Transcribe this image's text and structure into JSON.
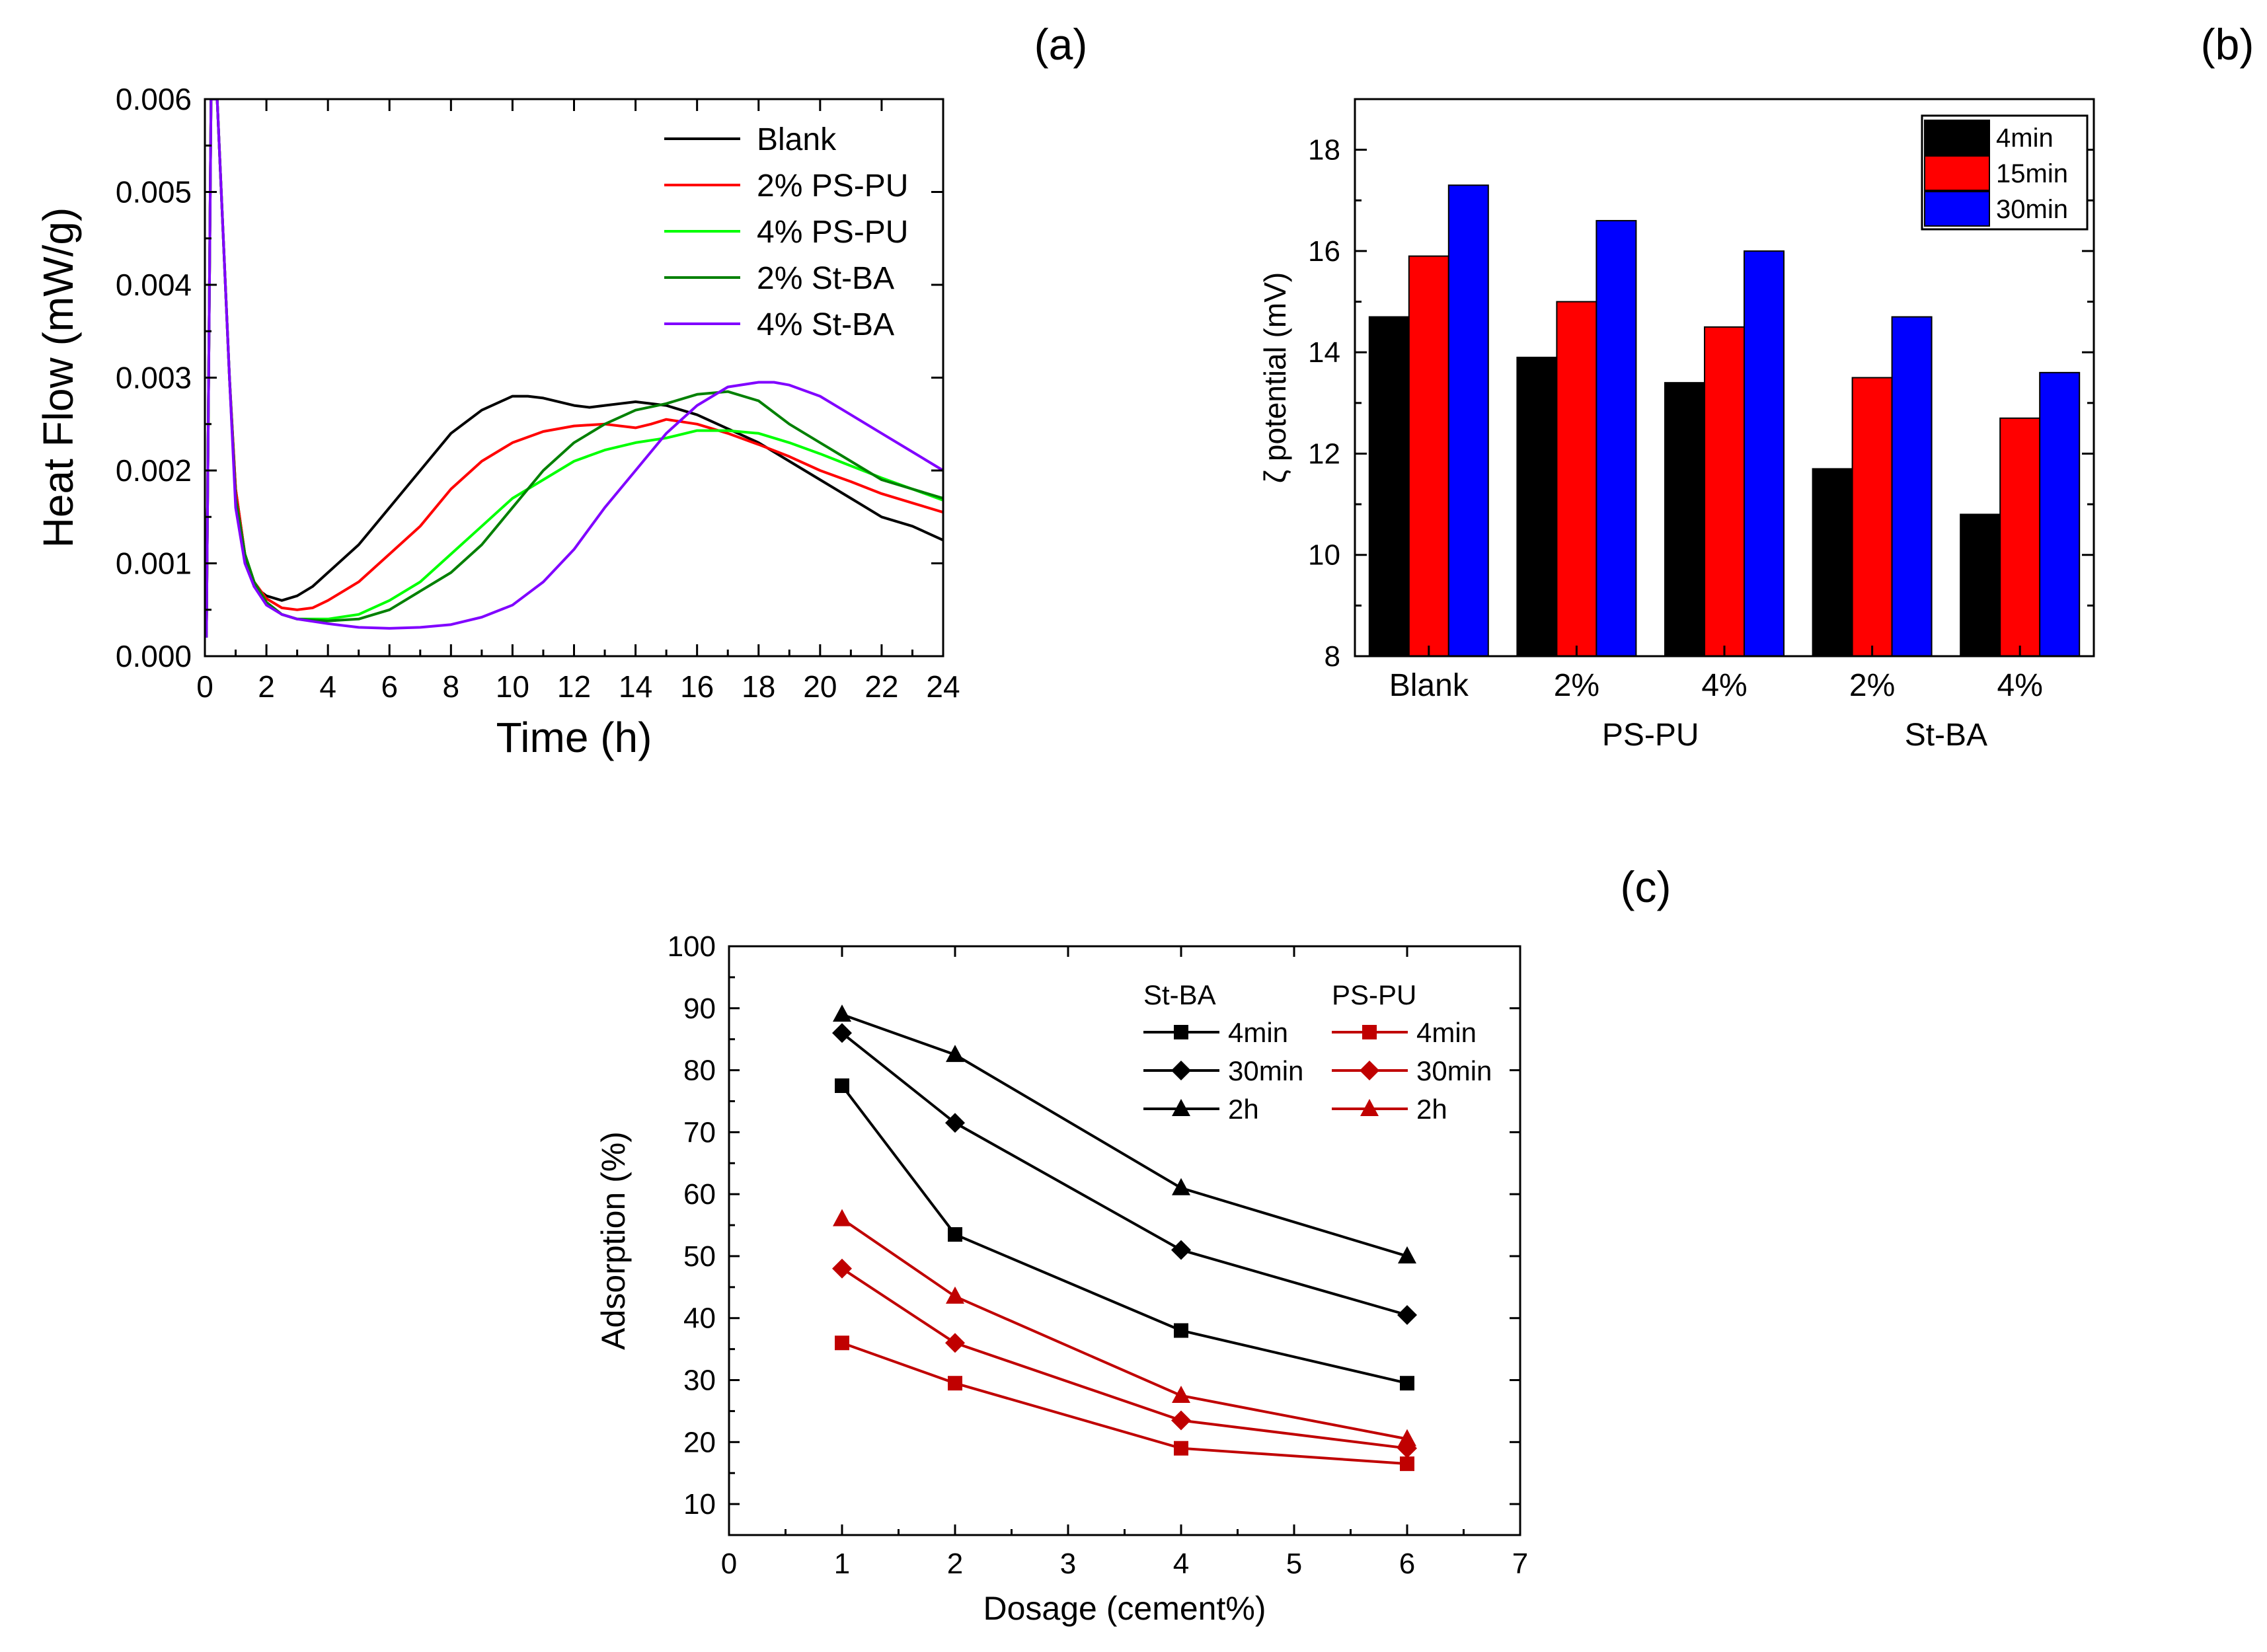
{
  "panel_labels": [
    "(a)",
    "(b)",
    "(c)"
  ],
  "colors": {
    "blank": "#000000",
    "ps_pu_2": "#ff0000",
    "ps_pu_4": "#00ff00",
    "st_ba_2": "#008000",
    "st_ba_4": "#8000ff",
    "bar_4min": "#000000",
    "bar_15min": "#ff0000",
    "bar_30min": "#0000ff",
    "st_ba_line": "#000000",
    "ps_pu_line": "#c00000"
  },
  "chart_data": [
    {
      "id": "a",
      "type": "line",
      "xlabel": "Time (h)",
      "ylabel": "Heat Flow (mW/g)",
      "xlim": [
        0,
        24
      ],
      "ylim": [
        0,
        0.006
      ],
      "xticks": [
        "0",
        "2",
        "4",
        "6",
        "8",
        "10",
        "12",
        "14",
        "16",
        "18",
        "20",
        "22",
        "24"
      ],
      "yticks": [
        "0.000",
        "0.001",
        "0.002",
        "0.003",
        "0.004",
        "0.005",
        "0.006"
      ],
      "legend_position": "top-right",
      "series": [
        {
          "name": "Blank",
          "color_key": "blank",
          "x": [
            0.05,
            0.2,
            0.4,
            0.6,
            0.8,
            1.0,
            1.3,
            1.6,
            2.0,
            2.5,
            3.0,
            3.5,
            4,
            5,
            6,
            7,
            8,
            9,
            10,
            10.5,
            11,
            12,
            12.5,
            13,
            13.5,
            14,
            15,
            16,
            17,
            18,
            19,
            20,
            21,
            22,
            23,
            24
          ],
          "y": [
            0.0002,
            0.006,
            0.006,
            0.0045,
            0.003,
            0.0018,
            0.0011,
            0.00075,
            0.00065,
            0.0006,
            0.00065,
            0.00075,
            0.0009,
            0.0012,
            0.0016,
            0.002,
            0.0024,
            0.00265,
            0.0028,
            0.0028,
            0.00278,
            0.0027,
            0.00268,
            0.0027,
            0.00272,
            0.00274,
            0.0027,
            0.0026,
            0.00245,
            0.0023,
            0.0021,
            0.0019,
            0.0017,
            0.0015,
            0.0014,
            0.00125
          ]
        },
        {
          "name": "2% PS-PU",
          "color_key": "ps_pu_2",
          "x": [
            0.05,
            0.2,
            0.4,
            0.6,
            0.8,
            1.0,
            1.3,
            1.6,
            2.0,
            2.5,
            3.0,
            3.5,
            4,
            5,
            6,
            7,
            8,
            9,
            10,
            11,
            12,
            13,
            14,
            14.5,
            15,
            16,
            17,
            18,
            19,
            20,
            21,
            22,
            23,
            24
          ],
          "y": [
            0.0002,
            0.006,
            0.006,
            0.0045,
            0.003,
            0.0018,
            0.0011,
            0.0008,
            0.00062,
            0.00052,
            0.0005,
            0.00052,
            0.0006,
            0.0008,
            0.0011,
            0.0014,
            0.0018,
            0.0021,
            0.0023,
            0.00242,
            0.00248,
            0.0025,
            0.00246,
            0.0025,
            0.00255,
            0.0025,
            0.0024,
            0.00228,
            0.00215,
            0.002,
            0.00188,
            0.00175,
            0.00165,
            0.00155
          ]
        },
        {
          "name": "4% PS-PU",
          "color_key": "ps_pu_4",
          "x": [
            0.05,
            0.2,
            0.4,
            0.6,
            0.8,
            1.0,
            1.3,
            1.6,
            2.0,
            2.5,
            3,
            4,
            5,
            6,
            7,
            8,
            9,
            10,
            11,
            12,
            13,
            14,
            15,
            16,
            17,
            18,
            19,
            20,
            21,
            22,
            23,
            24
          ],
          "y": [
            0.0002,
            0.006,
            0.006,
            0.0045,
            0.003,
            0.0017,
            0.0011,
            0.0008,
            0.00058,
            0.00045,
            0.0004,
            0.0004,
            0.00045,
            0.0006,
            0.0008,
            0.0011,
            0.0014,
            0.0017,
            0.0019,
            0.0021,
            0.00222,
            0.0023,
            0.00235,
            0.00243,
            0.00243,
            0.0024,
            0.0023,
            0.00218,
            0.00205,
            0.00192,
            0.0018,
            0.00168
          ]
        },
        {
          "name": "2% St-BA",
          "color_key": "st_ba_2",
          "x": [
            0.05,
            0.2,
            0.4,
            0.6,
            0.8,
            1.0,
            1.3,
            1.6,
            2.0,
            2.5,
            3,
            4,
            5,
            6,
            7,
            8,
            9,
            10,
            11,
            12,
            13,
            14,
            15,
            16,
            17,
            18,
            19,
            20,
            21,
            22,
            23,
            24
          ],
          "y": [
            0.0002,
            0.006,
            0.006,
            0.0045,
            0.003,
            0.0017,
            0.0011,
            0.0008,
            0.00058,
            0.00045,
            0.0004,
            0.00038,
            0.0004,
            0.0005,
            0.0007,
            0.0009,
            0.0012,
            0.0016,
            0.002,
            0.0023,
            0.0025,
            0.00265,
            0.00272,
            0.00282,
            0.00285,
            0.00275,
            0.0025,
            0.0023,
            0.0021,
            0.0019,
            0.0018,
            0.0017
          ]
        },
        {
          "name": "4% St-BA",
          "color_key": "st_ba_4",
          "x": [
            0.05,
            0.2,
            0.4,
            0.6,
            0.8,
            1.0,
            1.3,
            1.6,
            2.0,
            2.5,
            3,
            4,
            5,
            6,
            7,
            8,
            9,
            10,
            11,
            12,
            13,
            14,
            15,
            16,
            17,
            18,
            18.5,
            19,
            20,
            21,
            22,
            23,
            24
          ],
          "y": [
            0.0002,
            0.006,
            0.006,
            0.0045,
            0.003,
            0.0016,
            0.001,
            0.00075,
            0.00055,
            0.00045,
            0.0004,
            0.00035,
            0.00031,
            0.0003,
            0.00031,
            0.00034,
            0.00042,
            0.00055,
            0.0008,
            0.00115,
            0.0016,
            0.002,
            0.0024,
            0.0027,
            0.0029,
            0.00295,
            0.00295,
            0.00292,
            0.0028,
            0.0026,
            0.0024,
            0.0022,
            0.002
          ]
        }
      ]
    },
    {
      "id": "b",
      "type": "bar",
      "ylabel": "ζ potential (mV)",
      "ylim": [
        8,
        19
      ],
      "yticks": [
        "8",
        "10",
        "12",
        "14",
        "16",
        "18"
      ],
      "categories": [
        "Blank",
        "2%",
        "4%",
        "2%",
        "4%"
      ],
      "group_labels": [
        "PS-PU",
        "St-BA"
      ],
      "legend_position": "top-right",
      "series": [
        {
          "name": "4min",
          "color_key": "bar_4min",
          "values": [
            14.7,
            13.9,
            13.4,
            11.7,
            10.8
          ]
        },
        {
          "name": "15min",
          "color_key": "bar_15min",
          "values": [
            15.9,
            15.0,
            14.5,
            13.5,
            12.7
          ]
        },
        {
          "name": "30min",
          "color_key": "bar_30min",
          "values": [
            17.3,
            16.6,
            16.0,
            14.7,
            13.6
          ]
        }
      ]
    },
    {
      "id": "c",
      "type": "line",
      "xlabel": "Dosage (cement%)",
      "ylabel": "Adsorption (%)",
      "xlim": [
        0,
        7
      ],
      "ylim": [
        5,
        100
      ],
      "xticks": [
        "0",
        "1",
        "2",
        "3",
        "4",
        "5",
        "6",
        "7"
      ],
      "yticks": [
        "10",
        "20",
        "30",
        "40",
        "50",
        "60",
        "70",
        "80",
        "90",
        "100"
      ],
      "legend_titles": [
        "St-BA",
        "PS-PU"
      ],
      "legend_position": "top-right",
      "x": [
        1,
        2,
        4,
        6
      ],
      "series": [
        {
          "name": "4min",
          "group": "St-BA",
          "marker": "square",
          "color_key": "st_ba_line",
          "values": [
            77.5,
            53.5,
            38,
            29.5
          ]
        },
        {
          "name": "30min",
          "group": "St-BA",
          "marker": "diamond",
          "color_key": "st_ba_line",
          "values": [
            86,
            71.5,
            51,
            40.5
          ]
        },
        {
          "name": "2h",
          "group": "St-BA",
          "marker": "triangle",
          "color_key": "st_ba_line",
          "values": [
            89,
            82.5,
            61,
            50
          ]
        },
        {
          "name": "4min",
          "group": "PS-PU",
          "marker": "square",
          "color_key": "ps_pu_line",
          "values": [
            36,
            29.5,
            19,
            16.5
          ]
        },
        {
          "name": "30min",
          "group": "PS-PU",
          "marker": "diamond",
          "color_key": "ps_pu_line",
          "values": [
            48,
            36,
            23.5,
            19
          ]
        },
        {
          "name": "2h",
          "group": "PS-PU",
          "marker": "triangle",
          "color_key": "ps_pu_line",
          "values": [
            56,
            43.5,
            27.5,
            20.5
          ]
        }
      ]
    }
  ]
}
